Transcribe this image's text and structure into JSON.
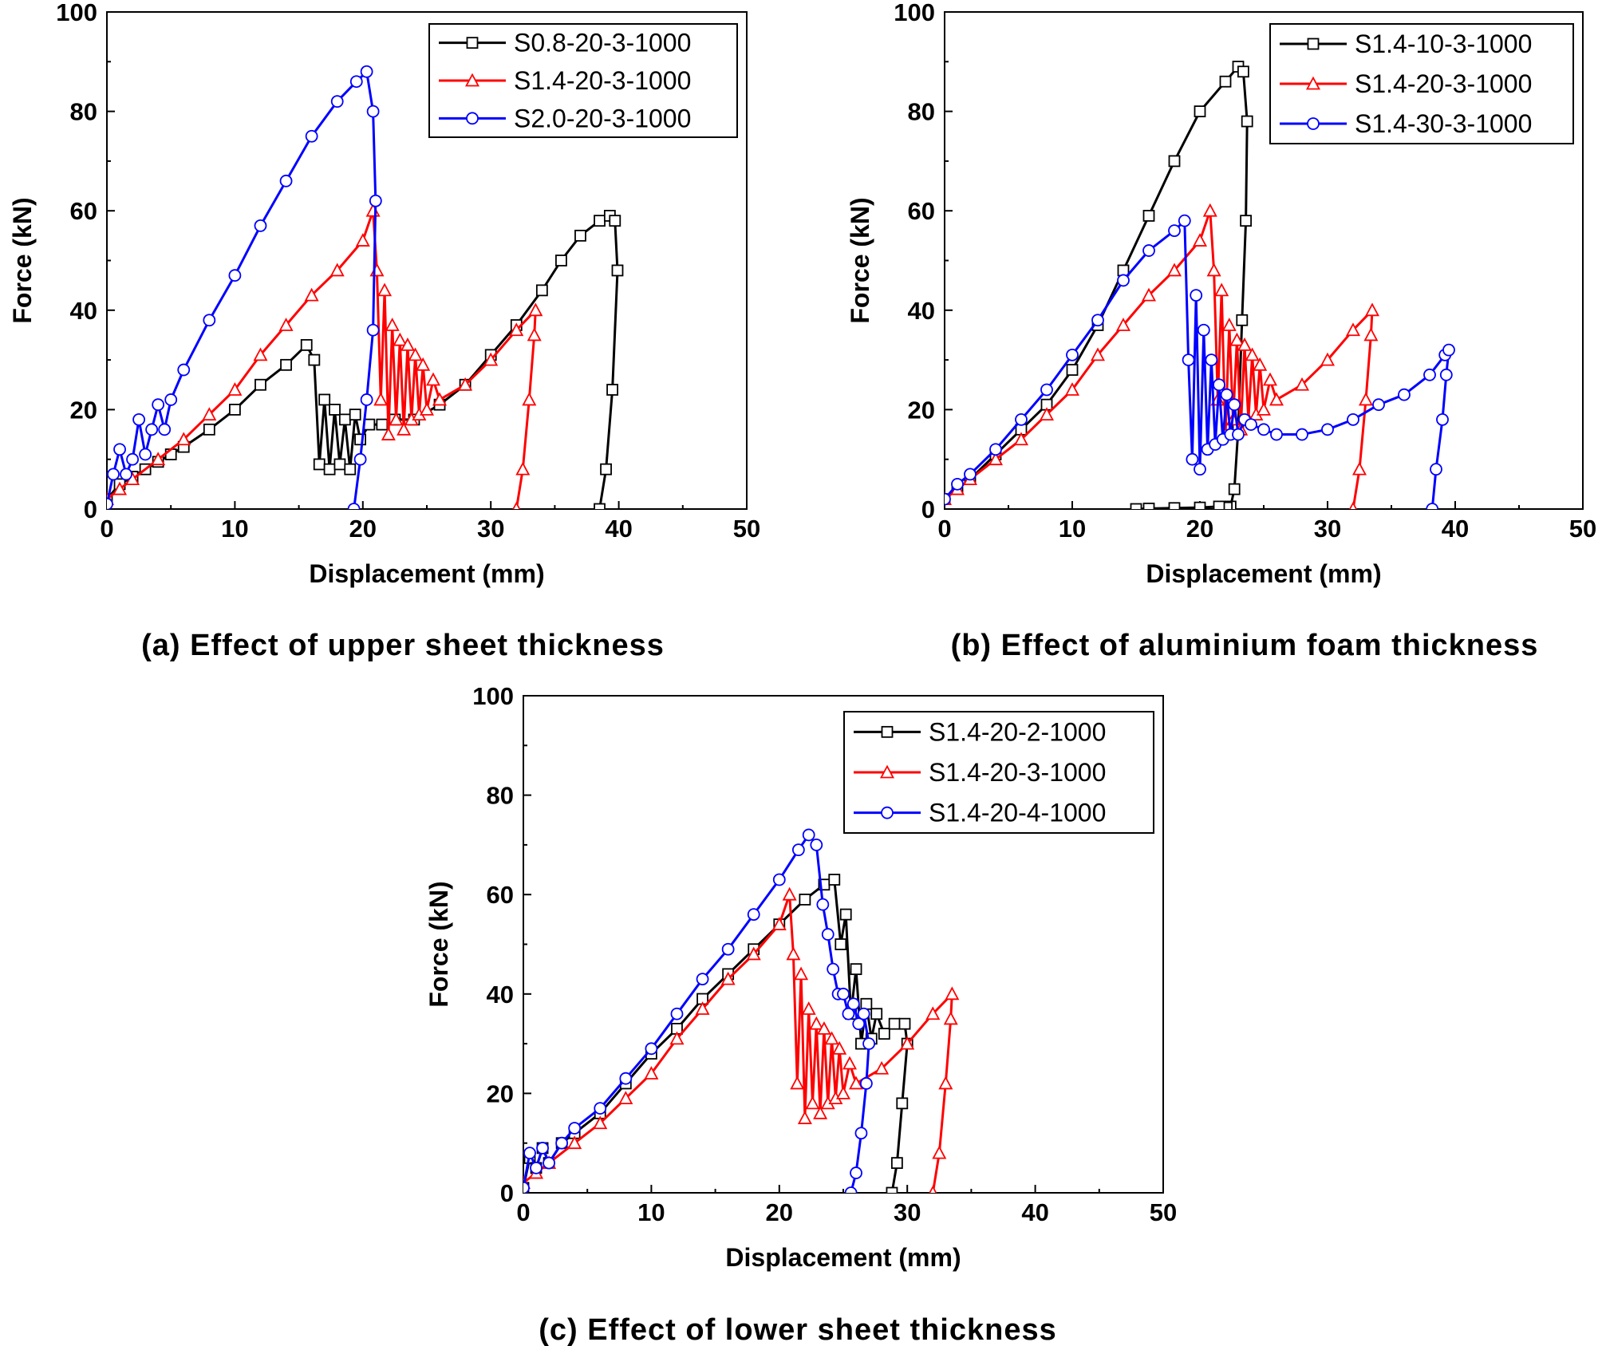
{
  "chart_data": [
    {
      "type": "line",
      "panel": "a",
      "caption": "(a) Effect of upper sheet thickness",
      "xlabel": "Displacement (mm)",
      "ylabel": "Force (kN)",
      "xlim": [
        0,
        50
      ],
      "ylim": [
        0,
        100
      ],
      "xticks": [
        "0",
        "10",
        "20",
        "30",
        "40",
        "50"
      ],
      "yticks": [
        "0",
        "20",
        "40",
        "60",
        "80",
        "100"
      ],
      "legend_position": "top-right",
      "series": [
        {
          "name": "S0.8-20-3-1000",
          "color": "#000000",
          "marker": "square",
          "x": [
            0,
            1,
            2,
            3,
            4,
            5,
            6,
            8,
            10,
            12,
            14,
            15.6,
            16.2,
            16.6,
            17.0,
            17.4,
            17.8,
            18.2,
            18.6,
            19.0,
            19.4,
            19.8,
            20.5,
            21.5,
            22.5,
            24,
            26,
            28,
            30,
            32,
            34,
            35.5,
            37,
            38.5,
            39.3,
            39.7,
            39.9,
            39.5,
            39.0,
            38.5
          ],
          "y": [
            2,
            5,
            6.5,
            8,
            9.5,
            11,
            12.5,
            16,
            20,
            25,
            29,
            33,
            30,
            9,
            22,
            8,
            20,
            9,
            18,
            8,
            19,
            14,
            17,
            17,
            18,
            18,
            21,
            25,
            31,
            37,
            44,
            50,
            55,
            58,
            59,
            58,
            48,
            24,
            8,
            0
          ]
        },
        {
          "name": "S1.4-20-3-1000",
          "color": "#ff0000",
          "marker": "triangle",
          "x": [
            0,
            1,
            2,
            4,
            6,
            8,
            10,
            12,
            14,
            16,
            18,
            20,
            20.8,
            21.1,
            21.4,
            21.7,
            22.0,
            22.3,
            22.6,
            22.9,
            23.2,
            23.5,
            23.8,
            24.1,
            24.4,
            24.7,
            25.0,
            25.5,
            26,
            28,
            30,
            32,
            33.5,
            33.4,
            33.0,
            32.5,
            32.0
          ],
          "y": [
            2,
            4,
            6,
            10,
            14,
            19,
            24,
            31,
            37,
            43,
            48,
            54,
            60,
            48,
            22,
            44,
            15,
            37,
            18,
            34,
            16,
            33,
            18,
            31,
            19,
            29,
            20,
            26,
            22,
            25,
            30,
            36,
            40,
            35,
            22,
            8,
            0
          ]
        },
        {
          "name": "S2.0-20-3-1000",
          "color": "#0000ff",
          "marker": "circle",
          "x": [
            0,
            0.5,
            1.0,
            1.5,
            2.0,
            2.5,
            3.0,
            3.5,
            4.0,
            4.5,
            5.0,
            6,
            8,
            10,
            12,
            14,
            16,
            18,
            19.5,
            20.3,
            20.8,
            21.0,
            20.8,
            20.3,
            19.8,
            19.3
          ],
          "y": [
            1,
            7,
            12,
            7,
            10,
            18,
            11,
            16,
            21,
            16,
            22,
            28,
            38,
            47,
            57,
            66,
            75,
            82,
            86,
            88,
            80,
            62,
            36,
            22,
            10,
            0
          ]
        }
      ]
    },
    {
      "type": "line",
      "panel": "b",
      "caption": "(b) Effect of aluminium foam thickness",
      "xlabel": "Displacement (mm)",
      "ylabel": "Force (kN)",
      "xlim": [
        0,
        50
      ],
      "ylim": [
        0,
        100
      ],
      "xticks": [
        "0",
        "10",
        "20",
        "30",
        "40",
        "50"
      ],
      "yticks": [
        "0",
        "20",
        "40",
        "60",
        "80",
        "100"
      ],
      "legend_position": "top-right",
      "series": [
        {
          "name": "S1.4-10-3-1000",
          "color": "#000000",
          "marker": "square",
          "x": [
            0,
            1,
            2,
            4,
            6,
            8,
            10,
            12,
            14,
            16,
            18,
            20,
            22,
            23.0,
            23.4,
            23.7,
            23.6,
            23.3,
            23.0,
            22.7,
            22.4,
            22.1,
            21.5,
            20,
            18,
            16,
            15
          ],
          "y": [
            2,
            4,
            6,
            11,
            16,
            21,
            28,
            37,
            48,
            59,
            70,
            80,
            86,
            89,
            88,
            78,
            58,
            38,
            16,
            4,
            0.5,
            0.3,
            0.5,
            0.3,
            0.2,
            0.1,
            0
          ]
        },
        {
          "name": "S1.4-20-3-1000",
          "color": "#ff0000",
          "marker": "triangle",
          "x": [
            0,
            1,
            2,
            4,
            6,
            8,
            10,
            12,
            14,
            16,
            18,
            20,
            20.8,
            21.1,
            21.4,
            21.7,
            22.0,
            22.3,
            22.6,
            22.9,
            23.2,
            23.5,
            23.8,
            24.1,
            24.4,
            24.7,
            25.0,
            25.5,
            26,
            28,
            30,
            32,
            33.5,
            33.4,
            33.0,
            32.5,
            32.0
          ],
          "y": [
            2,
            4,
            6,
            10,
            14,
            19,
            24,
            31,
            37,
            43,
            48,
            54,
            60,
            48,
            22,
            44,
            15,
            37,
            18,
            34,
            16,
            33,
            18,
            31,
            19,
            29,
            20,
            26,
            22,
            25,
            30,
            36,
            40,
            35,
            22,
            8,
            0
          ]
        },
        {
          "name": "S1.4-30-3-1000",
          "color": "#0000ff",
          "marker": "circle",
          "x": [
            0,
            1,
            2,
            4,
            6,
            8,
            10,
            12,
            14,
            16,
            18,
            18.8,
            19.1,
            19.4,
            19.7,
            20.0,
            20.3,
            20.6,
            20.9,
            21.2,
            21.5,
            21.8,
            22.1,
            22.4,
            22.7,
            23.0,
            23.5,
            24,
            25,
            26,
            28,
            30,
            32,
            34,
            36,
            38,
            39.2,
            39.5,
            39.3,
            39.0,
            38.5,
            38.2
          ],
          "y": [
            2,
            5,
            7,
            12,
            18,
            24,
            31,
            38,
            46,
            52,
            56,
            58,
            30,
            10,
            43,
            8,
            36,
            12,
            30,
            13,
            25,
            14,
            23,
            15,
            21,
            15,
            18,
            17,
            16,
            15,
            15,
            16,
            18,
            21,
            23,
            27,
            31,
            32,
            27,
            18,
            8,
            0
          ]
        }
      ]
    },
    {
      "type": "line",
      "panel": "c",
      "caption": "(c) Effect of lower sheet thickness",
      "xlabel": "Displacement (mm)",
      "ylabel": "Force (kN)",
      "xlim": [
        0,
        50
      ],
      "ylim": [
        0,
        100
      ],
      "xticks": [
        "0",
        "10",
        "20",
        "30",
        "40",
        "50"
      ],
      "yticks": [
        "0",
        "20",
        "40",
        "60",
        "80",
        "100"
      ],
      "legend_position": "top-right",
      "series": [
        {
          "name": "S1.4-20-2-1000",
          "color": "#000000",
          "marker": "square",
          "x": [
            0,
            0.5,
            1,
            1.5,
            2,
            3,
            4,
            6,
            8,
            10,
            12,
            14,
            16,
            18,
            20,
            22,
            23.5,
            24.3,
            24.8,
            25.2,
            25.6,
            26.0,
            26.4,
            26.8,
            27.2,
            27.6,
            28.2,
            29,
            29.8,
            30.0,
            29.6,
            29.2,
            28.8
          ],
          "y": [
            1,
            7,
            5,
            9,
            6,
            10,
            12,
            16,
            22,
            28,
            33,
            39,
            44,
            49,
            54,
            59,
            62,
            63,
            50,
            56,
            36,
            45,
            30,
            38,
            31,
            36,
            32,
            34,
            34,
            30,
            18,
            6,
            0
          ]
        },
        {
          "name": "S1.4-20-3-1000",
          "color": "#ff0000",
          "marker": "triangle",
          "x": [
            0,
            1,
            2,
            4,
            6,
            8,
            10,
            12,
            14,
            16,
            18,
            20,
            20.8,
            21.1,
            21.4,
            21.7,
            22.0,
            22.3,
            22.6,
            22.9,
            23.2,
            23.5,
            23.8,
            24.1,
            24.4,
            24.7,
            25.0,
            25.5,
            26,
            28,
            30,
            32,
            33.5,
            33.4,
            33.0,
            32.5,
            32.0
          ],
          "y": [
            2,
            4,
            6,
            10,
            14,
            19,
            24,
            31,
            37,
            43,
            48,
            54,
            60,
            48,
            22,
            44,
            15,
            37,
            18,
            34,
            16,
            33,
            18,
            31,
            19,
            29,
            20,
            26,
            22,
            25,
            30,
            36,
            40,
            35,
            22,
            8,
            0
          ]
        },
        {
          "name": "S1.4-20-4-1000",
          "color": "#0000ff",
          "marker": "circle",
          "x": [
            0,
            0.5,
            1,
            1.5,
            2,
            3,
            4,
            6,
            8,
            10,
            12,
            14,
            16,
            18,
            20,
            21.5,
            22.3,
            22.9,
            23.4,
            23.8,
            24.2,
            24.6,
            25.0,
            25.4,
            25.8,
            26.2,
            26.6,
            27.0,
            26.8,
            26.4,
            26.0,
            25.6
          ],
          "y": [
            1,
            8,
            5,
            9,
            6,
            10,
            13,
            17,
            23,
            29,
            36,
            43,
            49,
            56,
            63,
            69,
            72,
            70,
            58,
            52,
            45,
            40,
            40,
            36,
            38,
            34,
            36,
            30,
            22,
            12,
            4,
            0
          ]
        }
      ]
    }
  ]
}
